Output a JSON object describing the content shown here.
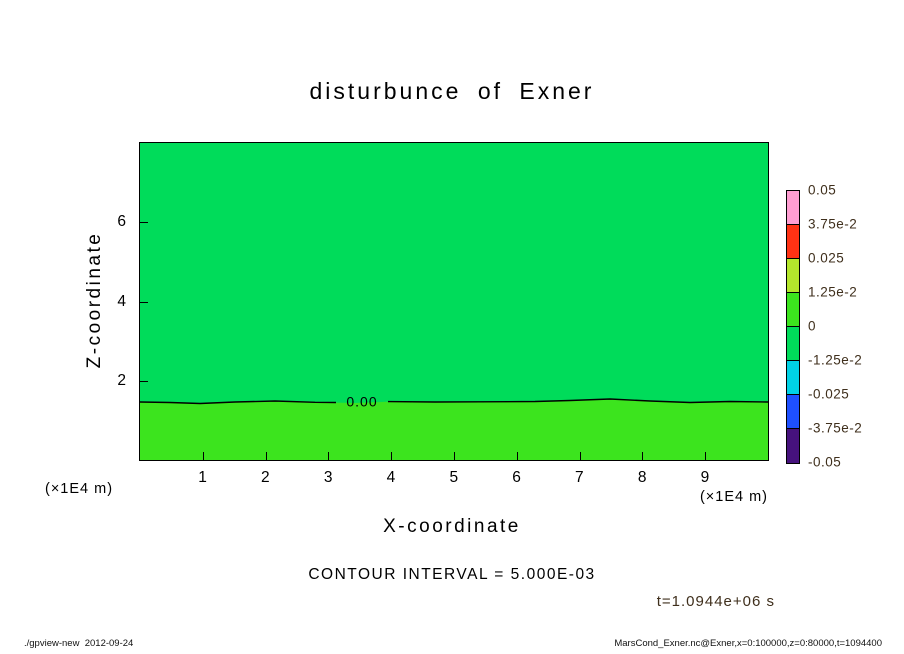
{
  "title": "disturbunce of Exner",
  "plot": {
    "fill_upper": "#00dc5a",
    "fill_lower": "#3ce41e",
    "contour_label": "0.00",
    "x_axis": {
      "label": "X-coordinate",
      "unit": "(×1E4 m)",
      "ticks": [
        "1",
        "2",
        "3",
        "4",
        "5",
        "6",
        "7",
        "8",
        "9"
      ]
    },
    "y_axis": {
      "label": "Z-coordinate",
      "unit": "(×1E4 m)",
      "ticks": [
        "2",
        "4",
        "6"
      ]
    }
  },
  "colorbar": {
    "labels": [
      "0.05",
      "3.75e-2",
      "0.025",
      "1.25e-2",
      "0",
      "-1.25e-2",
      "-0.025",
      "-3.75e-2",
      "-0.05"
    ],
    "colors": [
      "#ff9ed2",
      "#ff3214",
      "#b4e62c",
      "#3ce41e",
      "#00dc5a",
      "#00d2e6",
      "#1e50ff",
      "#46127d"
    ]
  },
  "contour_interval_label": "CONTOUR INTERVAL = 5.000E-03",
  "time_label": "t=1.0944e+06 s",
  "footer": {
    "left": "./gpview-new  2012-09-24",
    "right": "MarsCond_Exner.nc@Exner,x=0:100000,z=0:80000,t=1094400"
  },
  "chart_data": {
    "type": "heatmap",
    "title": "disturbunce of Exner",
    "xlabel": "X-coordinate (×1E4 m)",
    "ylabel": "Z-coordinate (×1E4 m)",
    "x_range": [
      0,
      10
    ],
    "z_range": [
      0,
      8
    ],
    "x_ticks": [
      1,
      2,
      3,
      4,
      5,
      6,
      7,
      8,
      9
    ],
    "z_ticks": [
      2,
      4,
      6
    ],
    "colorbar_levels": [
      0.05,
      0.0375,
      0.025,
      0.0125,
      0,
      -0.0125,
      -0.025,
      -0.0375,
      -0.05
    ],
    "contour_interval": 0.005,
    "contours": [
      {
        "level": 0.0,
        "label": "0.00",
        "shape": "nearly horizontal line spanning the full x range with small undulations",
        "z_mean": 1.5,
        "z_variation": 0.1
      }
    ],
    "regions": [
      {
        "area": "above zero contour, z ~1.5 to 8",
        "value_bin": "near zero (between -1.25e-2 and 1.25e-2)",
        "color": "#00dc5a"
      },
      {
        "area": "below zero contour, z ~0 to 1.5",
        "value_bin": "near zero (adjacent bin across 0)",
        "color": "#3ce41e"
      }
    ],
    "time": "t=1.0944e+06 s",
    "legend_position": "right colorbar",
    "grid": false
  }
}
